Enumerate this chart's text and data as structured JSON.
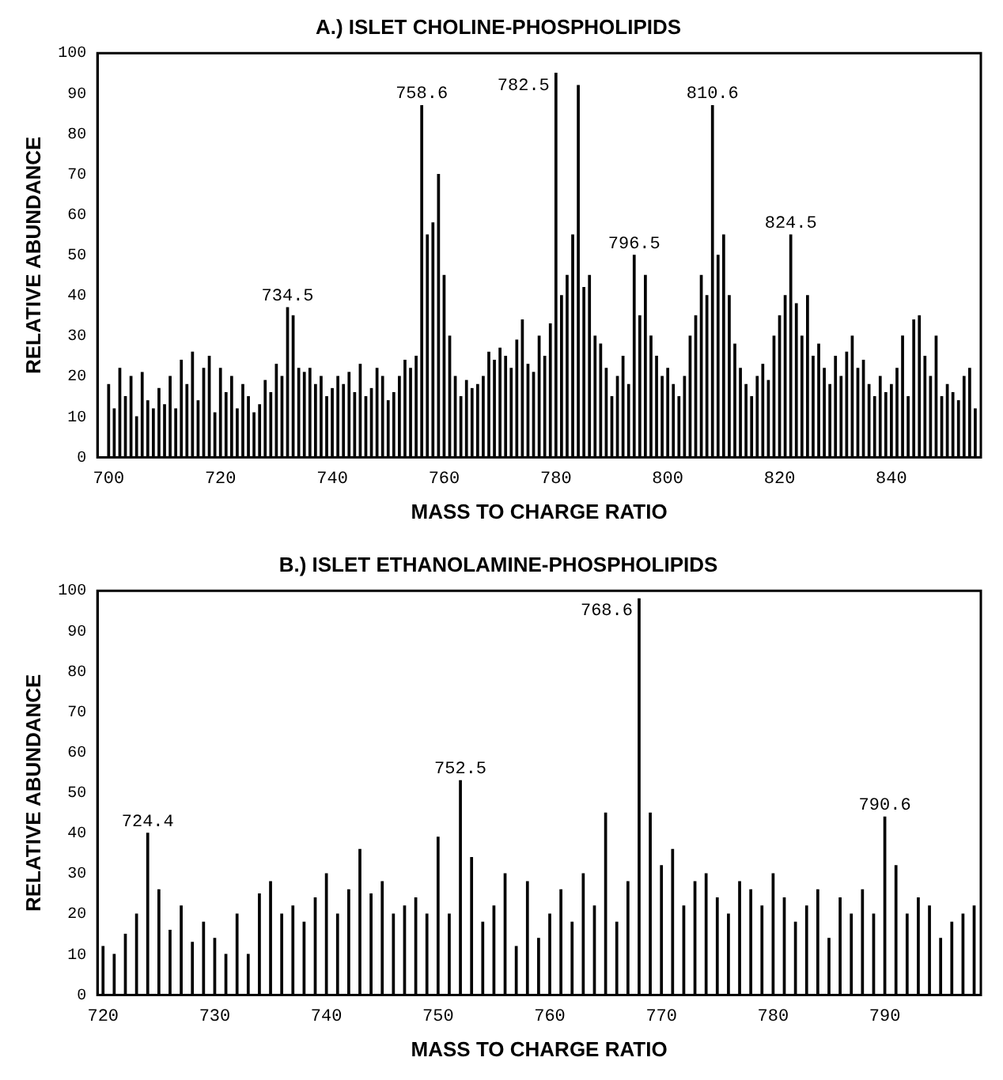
{
  "chart_data": [
    {
      "type": "bar",
      "title": "A.) ISLET CHOLINE-PHOSPHOLIPIDS",
      "xlabel": "MASS TO CHARGE RATIO",
      "ylabel": "RELATIVE ABUNDANCE",
      "color": "#000000",
      "grid": false,
      "xlim": [
        698,
        856
      ],
      "xticks": [
        700,
        720,
        740,
        760,
        780,
        800,
        820,
        840
      ],
      "ylim": [
        0,
        100
      ],
      "yticks": [
        0,
        10,
        20,
        30,
        40,
        50,
        60,
        70,
        80,
        90,
        100
      ],
      "x": [
        700,
        701,
        702,
        703,
        704,
        705,
        706,
        707,
        708,
        709,
        710,
        711,
        712,
        713,
        714,
        715,
        716,
        717,
        718,
        719,
        720,
        721,
        722,
        723,
        724,
        725,
        726,
        727,
        728,
        729,
        730,
        731,
        732,
        733,
        734,
        735,
        736,
        737,
        738,
        739,
        740,
        741,
        742,
        743,
        744,
        745,
        746,
        747,
        748,
        749,
        750,
        751,
        752,
        753,
        754,
        755,
        756,
        757,
        758,
        759,
        760,
        761,
        762,
        763,
        764,
        765,
        766,
        767,
        768,
        769,
        770,
        771,
        772,
        773,
        774,
        775,
        776,
        777,
        778,
        779,
        780,
        781,
        782,
        783,
        784,
        785,
        786,
        787,
        788,
        789,
        790,
        791,
        792,
        793,
        794,
        795,
        796,
        797,
        798,
        799,
        800,
        801,
        802,
        803,
        804,
        805,
        806,
        807,
        808,
        809,
        810,
        811,
        812,
        813,
        814,
        815,
        816,
        817,
        818,
        819,
        820,
        821,
        822,
        823,
        824,
        825,
        826,
        827,
        828,
        829,
        830,
        831,
        832,
        833,
        834,
        835,
        836,
        837,
        838,
        839,
        840,
        841,
        842,
        843,
        844,
        845,
        846,
        847,
        848,
        849,
        850,
        851,
        852,
        853,
        854,
        855
      ],
      "values": [
        18,
        12,
        22,
        15,
        20,
        10,
        21,
        14,
        12,
        17,
        13,
        20,
        12,
        24,
        18,
        26,
        14,
        22,
        25,
        11,
        22,
        16,
        20,
        12,
        18,
        15,
        11,
        13,
        19,
        16,
        23,
        20,
        37,
        35,
        22,
        21,
        22,
        18,
        20,
        15,
        17,
        20,
        18,
        21,
        16,
        23,
        15,
        17,
        22,
        20,
        14,
        16,
        20,
        24,
        22,
        25,
        87,
        55,
        58,
        70,
        45,
        30,
        20,
        15,
        19,
        17,
        18,
        20,
        26,
        24,
        27,
        25,
        22,
        29,
        34,
        23,
        21,
        30,
        25,
        33,
        95,
        40,
        45,
        55,
        92,
        42,
        45,
        30,
        28,
        22,
        15,
        20,
        25,
        18,
        50,
        35,
        45,
        30,
        25,
        20,
        22,
        18,
        15,
        20,
        30,
        35,
        45,
        40,
        87,
        50,
        55,
        40,
        28,
        22,
        18,
        15,
        20,
        23,
        19,
        30,
        35,
        40,
        55,
        38,
        30,
        40,
        25,
        28,
        22,
        18,
        25,
        20,
        26,
        30,
        22,
        24,
        18,
        15,
        20,
        16,
        18,
        22,
        30,
        15,
        34,
        35,
        25,
        20,
        30,
        15,
        18,
        16,
        14,
        20,
        22,
        12
      ],
      "annotations": [
        {
          "text": "734.5",
          "x": 732,
          "y": 37
        },
        {
          "text": "758.6",
          "x": 756,
          "y": 87
        },
        {
          "text": "782.5",
          "x": 780,
          "y": 95
        },
        {
          "text": "796.5",
          "x": 794,
          "y": 50
        },
        {
          "text": "810.6",
          "x": 808,
          "y": 87
        },
        {
          "text": "824.5",
          "x": 822,
          "y": 55
        }
      ]
    },
    {
      "type": "bar",
      "title": "B.) ISLET ETHANOLAMINE-PHOSPHOLIPIDS",
      "xlabel": "MASS TO CHARGE RATIO",
      "ylabel": "RELATIVE ABUNDANCE",
      "color": "#000000",
      "grid": false,
      "xlim": [
        719.5,
        798.6
      ],
      "xticks": [
        720,
        730,
        740,
        750,
        760,
        770,
        780,
        790
      ],
      "ylim": [
        0,
        100
      ],
      "yticks": [
        0,
        10,
        20,
        30,
        40,
        50,
        60,
        70,
        80,
        90,
        100
      ],
      "x": [
        720,
        721,
        722,
        723,
        724,
        725,
        726,
        727,
        728,
        729,
        730,
        731,
        732,
        733,
        734,
        735,
        736,
        737,
        738,
        739,
        740,
        741,
        742,
        743,
        744,
        745,
        746,
        747,
        748,
        749,
        750,
        751,
        752,
        753,
        754,
        755,
        756,
        757,
        758,
        759,
        760,
        761,
        762,
        763,
        764,
        765,
        766,
        767,
        768,
        769,
        770,
        771,
        772,
        773,
        774,
        775,
        776,
        777,
        778,
        779,
        780,
        781,
        782,
        783,
        784,
        785,
        786,
        787,
        788,
        789,
        790,
        791,
        792,
        793,
        794,
        795,
        796,
        797,
        798
      ],
      "values": [
        12,
        10,
        15,
        20,
        40,
        26,
        16,
        22,
        13,
        18,
        14,
        10,
        20,
        10,
        25,
        28,
        20,
        22,
        18,
        24,
        30,
        20,
        26,
        36,
        25,
        28,
        20,
        22,
        24,
        20,
        39,
        20,
        53,
        34,
        18,
        22,
        30,
        12,
        28,
        14,
        20,
        26,
        18,
        30,
        22,
        45,
        18,
        28,
        98,
        45,
        32,
        36,
        22,
        28,
        30,
        24,
        20,
        28,
        26,
        22,
        30,
        24,
        18,
        22,
        26,
        14,
        24,
        20,
        26,
        20,
        44,
        32,
        20,
        24,
        22,
        14,
        18,
        20,
        22
      ],
      "annotations": [
        {
          "text": "724.4",
          "x": 724,
          "y": 40
        },
        {
          "text": "752.5",
          "x": 752,
          "y": 53
        },
        {
          "text": "768.6",
          "x": 768,
          "y": 98
        },
        {
          "text": "790.6",
          "x": 790,
          "y": 44
        }
      ]
    }
  ]
}
